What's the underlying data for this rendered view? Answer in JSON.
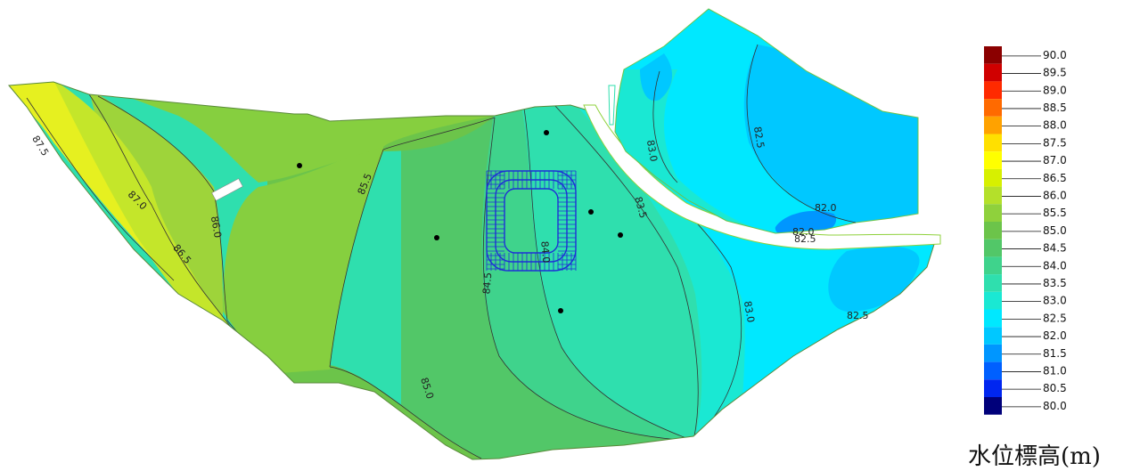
{
  "legend": {
    "title": "水位標高(m)",
    "levels": [
      {
        "value": "90.0",
        "color": "#8b0000"
      },
      {
        "value": "89.5",
        "color": "#d00000"
      },
      {
        "value": "89.0",
        "color": "#ff2a00"
      },
      {
        "value": "88.5",
        "color": "#ff6a00"
      },
      {
        "value": "88.0",
        "color": "#ffa200"
      },
      {
        "value": "87.5",
        "color": "#ffe000"
      },
      {
        "value": "87.0",
        "color": "#ffff00"
      },
      {
        "value": "86.5",
        "color": "#d7f000"
      },
      {
        "value": "86.0",
        "color": "#b4e02a"
      },
      {
        "value": "85.5",
        "color": "#8fd13c"
      },
      {
        "value": "85.0",
        "color": "#6cc44a"
      },
      {
        "value": "84.5",
        "color": "#52c768"
      },
      {
        "value": "84.0",
        "color": "#3fd38c"
      },
      {
        "value": "83.5",
        "color": "#2fdfae"
      },
      {
        "value": "83.0",
        "color": "#1ae8d3"
      },
      {
        "value": "82.5",
        "color": "#00e8ff"
      },
      {
        "value": "82.0",
        "color": "#00c8ff"
      },
      {
        "value": "81.5",
        "color": "#0096ff"
      },
      {
        "value": "81.0",
        "color": "#0060ff"
      },
      {
        "value": "80.5",
        "color": "#0026f0"
      },
      {
        "value": "80.0",
        "color": "#00007a"
      }
    ]
  },
  "contour_labels": {
    "c875": "87.5",
    "c870": "87.0",
    "c865": "86.5",
    "c860": "86.0",
    "c855": "85.5",
    "c850": "85.0",
    "c845": "84.5",
    "c840": "84.0",
    "c835": "83.5",
    "c830a": "83.0",
    "c830b": "83.0",
    "c825a": "82.5",
    "c825b": "82.5",
    "c825c": "82.5",
    "c820a": "82.0",
    "c820b": "82.0"
  },
  "colors": {
    "zone_865": "#c4e62a",
    "zone_860": "#9ed43a",
    "zone_855": "#86cf3f",
    "zone_850": "#6cc44a",
    "zone_845": "#52c768",
    "zone_840": "#3fd38c",
    "zone_835": "#2fdfae",
    "zone_830": "#1ae8d3",
    "zone_825": "#00e8ff",
    "zone_820": "#00c8ff",
    "zone_815": "#0096ff",
    "zone_870": "#e6f020",
    "well_grid": "#1f2fd6"
  }
}
